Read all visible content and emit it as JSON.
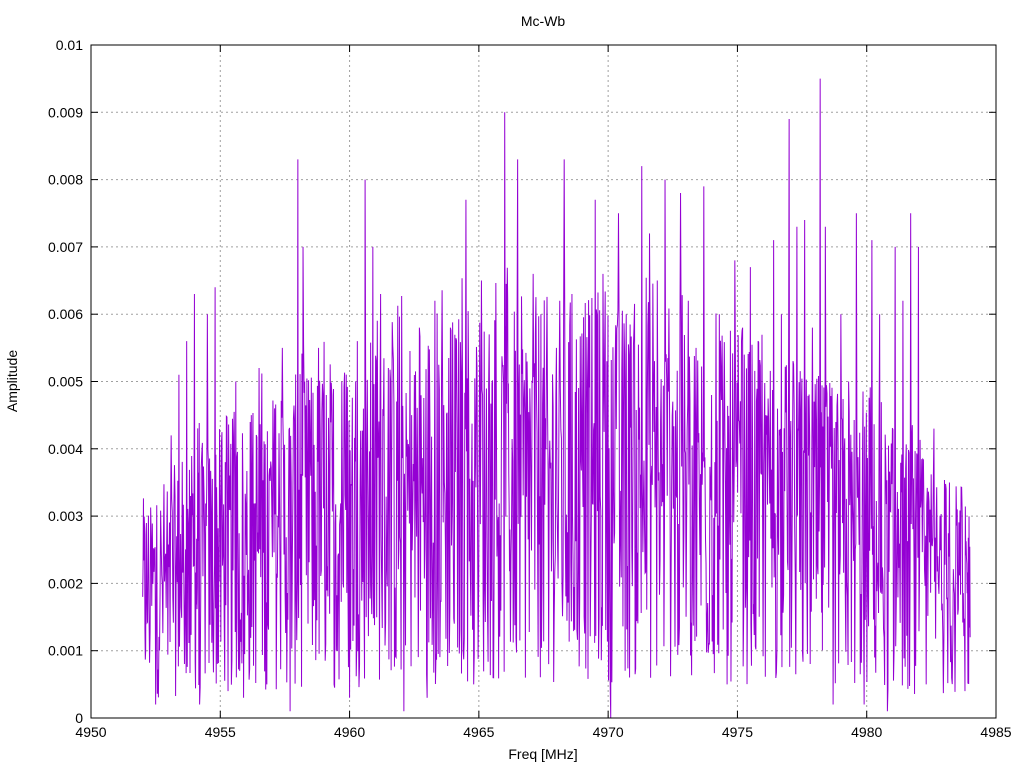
{
  "chart_data": {
    "type": "line",
    "title": "Mc-Wb",
    "xlabel": "Freq [MHz]",
    "ylabel": "Amplitude",
    "xlim": [
      4950,
      4985
    ],
    "ylim": [
      0,
      0.01
    ],
    "x_ticks": [
      "4950",
      "4955",
      "4960",
      "4965",
      "4970",
      "4975",
      "4980",
      "4985"
    ],
    "y_ticks": [
      "0",
      "0.001",
      "0.002",
      "0.003",
      "0.004",
      "0.005",
      "0.006",
      "0.007",
      "0.008",
      "0.009",
      "0.01"
    ],
    "grid": true,
    "x_range_data": [
      4952.0,
      4984.0
    ],
    "series": [
      {
        "color": "#9400d3",
        "x": [
          4952.0,
          4952.2,
          4952.5,
          4952.8,
          4953.1,
          4953.4,
          4953.7,
          4954.0,
          4954.2,
          4954.5,
          4954.8,
          4955.0,
          4955.3,
          4955.6,
          4955.9,
          4956.2,
          4956.5,
          4956.8,
          4957.1,
          4957.4,
          4957.7,
          4958.0,
          4958.2,
          4958.5,
          4958.8,
          4959.1,
          4959.4,
          4959.7,
          4960.0,
          4960.3,
          4960.6,
          4960.9,
          4961.2,
          4961.5,
          4961.8,
          4962.1,
          4962.4,
          4962.7,
          4963.0,
          4963.3,
          4963.6,
          4963.9,
          4964.2,
          4964.5,
          4964.8,
          4965.1,
          4965.4,
          4965.7,
          4966.0,
          4966.2,
          4966.5,
          4966.8,
          4967.1,
          4967.4,
          4967.7,
          4968.0,
          4968.3,
          4968.6,
          4968.9,
          4969.2,
          4969.5,
          4969.8,
          4970.1,
          4970.4,
          4970.7,
          4971.0,
          4971.3,
          4971.6,
          4971.9,
          4972.2,
          4972.5,
          4972.8,
          4973.1,
          4973.4,
          4973.7,
          4974.0,
          4974.3,
          4974.6,
          4974.9,
          4975.2,
          4975.5,
          4975.8,
          4976.1,
          4976.4,
          4976.7,
          4977.0,
          4977.3,
          4977.6,
          4977.9,
          4978.2,
          4978.4,
          4978.7,
          4979.0,
          4979.3,
          4979.6,
          4979.9,
          4980.2,
          4980.5,
          4980.8,
          4981.1,
          4981.4,
          4981.7,
          4982.0,
          4982.3,
          4982.6,
          4982.9,
          4983.2,
          4983.5,
          4983.8,
          4984.0
        ],
        "y": [
          0.0018,
          0.0023,
          0.0002,
          0.0026,
          0.0042,
          0.0051,
          0.0056,
          0.0063,
          0.0002,
          0.006,
          0.0064,
          0.0032,
          0.0004,
          0.005,
          0.0003,
          0.0045,
          0.0052,
          0.0005,
          0.0046,
          0.0055,
          0.0001,
          0.0083,
          0.007,
          0.0036,
          0.0055,
          0.0048,
          0.0005,
          0.005,
          0.0003,
          0.0056,
          0.008,
          0.007,
          0.0063,
          0.0052,
          0.0009,
          0.0001,
          0.0045,
          0.0058,
          0.0003,
          0.0062,
          0.0048,
          0.0058,
          0.004,
          0.0077,
          0.0005,
          0.0065,
          0.0057,
          0.0024,
          0.009,
          0.0028,
          0.0083,
          0.0006,
          0.0066,
          0.006,
          0.0008,
          0.0055,
          0.0083,
          0.0063,
          0.0018,
          0.005,
          0.0077,
          0.0066,
          0.0,
          0.0075,
          0.006,
          0.0058,
          0.0082,
          0.0072,
          0.0065,
          0.008,
          0.0047,
          0.0078,
          0.0062,
          0.0055,
          0.0079,
          0.0048,
          0.006,
          0.0005,
          0.0068,
          0.0058,
          0.0067,
          0.0056,
          0.0045,
          0.0071,
          0.006,
          0.0089,
          0.0073,
          0.0074,
          0.0058,
          0.0095,
          0.0073,
          0.0002,
          0.006,
          0.005,
          0.0075,
          0.0002,
          0.0071,
          0.006,
          0.0001,
          0.007,
          0.0062,
          0.0075,
          0.007,
          0.0005,
          0.0043,
          0.0016,
          0.0035,
          0.0031,
          0.0004,
          0.0012
        ]
      }
    ]
  }
}
